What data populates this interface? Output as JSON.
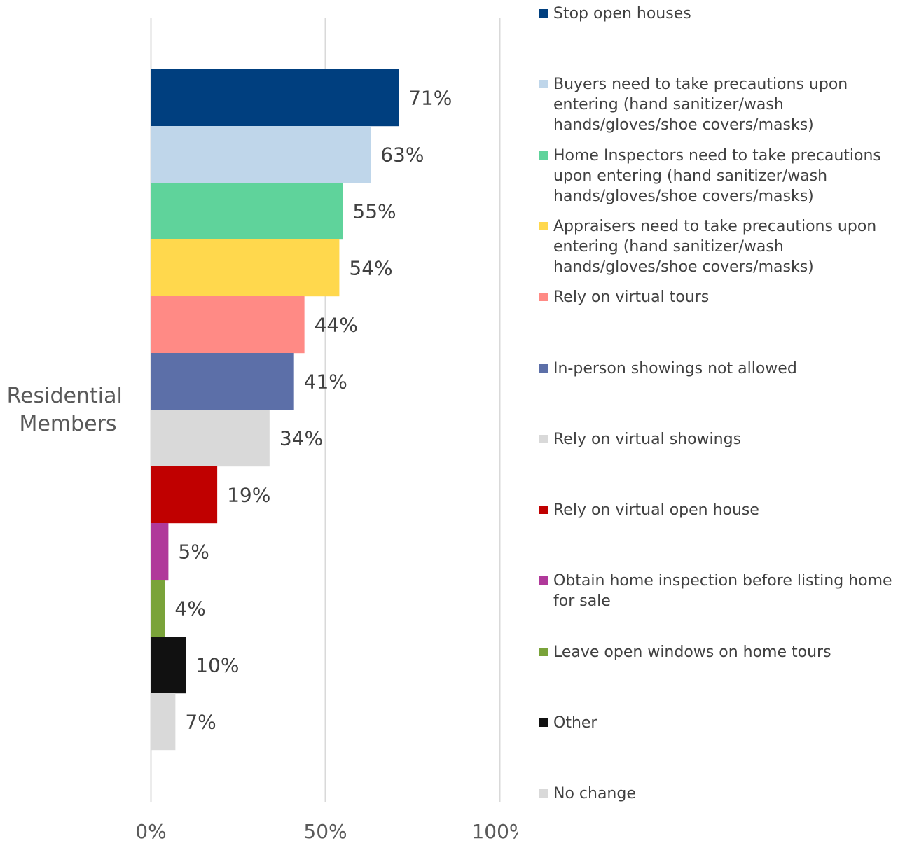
{
  "chart_data": {
    "type": "bar",
    "orientation": "horizontal",
    "categories": [
      "Residential Members"
    ],
    "category_label_lines": [
      "Residential",
      "Members"
    ],
    "xlim": [
      0,
      100
    ],
    "x_ticks": [
      "0%",
      "50%",
      "100%"
    ],
    "x_tick_values": [
      0,
      50,
      100
    ],
    "grid": true,
    "legend_position": "right",
    "series": [
      {
        "name": "Stop open houses",
        "values": [
          71
        ],
        "label": "71%",
        "color": "#003f7f"
      },
      {
        "name": "Buyers need to take precautions upon entering (hand sanitizer/wash hands/gloves/shoe covers/masks)",
        "values": [
          63
        ],
        "label": "63%",
        "color": "#bfd6ea"
      },
      {
        "name": "Home Inspectors need to take precautions upon entering (hand sanitizer/wash hands/gloves/shoe covers/masks)",
        "values": [
          55
        ],
        "label": "55%",
        "color": "#5fd39b"
      },
      {
        "name": "Appraisers need to take precautions upon entering (hand sanitizer/wash hands/gloves/shoe covers/masks)",
        "values": [
          54
        ],
        "label": "54%",
        "color": "#ffd84d"
      },
      {
        "name": "Rely on virtual tours",
        "values": [
          44
        ],
        "label": "44%",
        "color": "#ff8a85"
      },
      {
        "name": "In-person showings not allowed",
        "values": [
          41
        ],
        "label": "41%",
        "color": "#5c6fa8"
      },
      {
        "name": "Rely on virtual showings",
        "values": [
          34
        ],
        "label": "34%",
        "color": "#d9d9d9"
      },
      {
        "name": "Rely on virtual open house",
        "values": [
          19
        ],
        "label": "19%",
        "color": "#c00000"
      },
      {
        "name": "Obtain home inspection before listing home for sale",
        "values": [
          5
        ],
        "label": "5%",
        "color": "#b0399a"
      },
      {
        "name": "Leave open windows on home tours",
        "values": [
          4
        ],
        "label": "4%",
        "color": "#7aa33a"
      },
      {
        "name": "Other",
        "values": [
          10
        ],
        "label": "10%",
        "color": "#111111"
      },
      {
        "name": "No change",
        "values": [
          7
        ],
        "label": "7%",
        "color": "#d9d9d9"
      }
    ]
  }
}
